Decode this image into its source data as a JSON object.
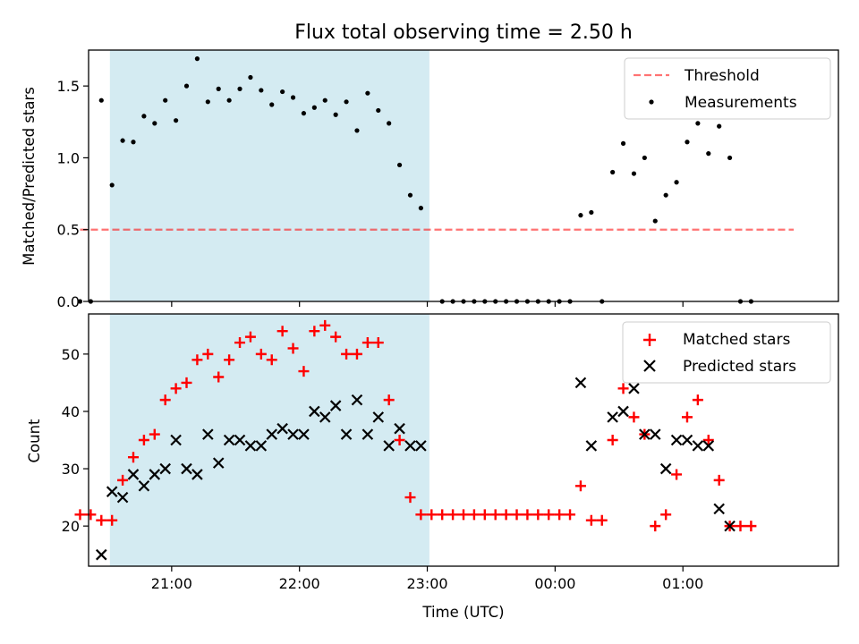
{
  "chart_data": [
    {
      "type": "scatter",
      "title": "Flux total observing time = 2.50 h",
      "xlabel": "",
      "ylabel": "Matched/Predicted stars",
      "ylim": [
        0,
        1.75
      ],
      "xlim": [
        "20:21",
        "02:13"
      ],
      "yticks": [
        "0.0",
        "0.5",
        "1.0",
        "1.5"
      ],
      "highlight_window": {
        "start": "20:31",
        "end": "23:01",
        "color": "#add8e6"
      },
      "threshold": {
        "name": "Threshold",
        "value": 0.5,
        "x_start": "20:17",
        "x_end": "01:52",
        "color": "#ff0000",
        "style": "dashed"
      },
      "series": [
        {
          "name": "Measurements",
          "color": "#000000",
          "marker": "dot",
          "points": [
            [
              "20:17",
              0.0
            ],
            [
              "20:22",
              0.0
            ],
            [
              "20:27",
              1.4
            ],
            [
              "20:32",
              0.81
            ],
            [
              "20:37",
              1.12
            ],
            [
              "20:42",
              1.11
            ],
            [
              "20:47",
              1.29
            ],
            [
              "20:52",
              1.24
            ],
            [
              "20:57",
              1.4
            ],
            [
              "21:02",
              1.26
            ],
            [
              "21:07",
              1.5
            ],
            [
              "21:12",
              1.69
            ],
            [
              "21:17",
              1.39
            ],
            [
              "21:22",
              1.48
            ],
            [
              "21:27",
              1.4
            ],
            [
              "21:32",
              1.48
            ],
            [
              "21:37",
              1.56
            ],
            [
              "21:42",
              1.47
            ],
            [
              "21:47",
              1.37
            ],
            [
              "21:52",
              1.46
            ],
            [
              "21:57",
              1.42
            ],
            [
              "22:02",
              1.31
            ],
            [
              "22:07",
              1.35
            ],
            [
              "22:12",
              1.4
            ],
            [
              "22:17",
              1.3
            ],
            [
              "22:22",
              1.39
            ],
            [
              "22:27",
              1.19
            ],
            [
              "22:32",
              1.45
            ],
            [
              "22:37",
              1.33
            ],
            [
              "22:42",
              1.24
            ],
            [
              "22:47",
              0.95
            ],
            [
              "22:52",
              0.74
            ],
            [
              "22:57",
              0.65
            ],
            [
              "23:07",
              0.0
            ],
            [
              "23:12",
              0.0
            ],
            [
              "23:17",
              0.0
            ],
            [
              "23:22",
              0.0
            ],
            [
              "23:27",
              0.0
            ],
            [
              "23:32",
              0.0
            ],
            [
              "23:37",
              0.0
            ],
            [
              "23:42",
              0.0
            ],
            [
              "23:47",
              0.0
            ],
            [
              "23:52",
              0.0
            ],
            [
              "23:57",
              0.0
            ],
            [
              "00:02",
              0.0
            ],
            [
              "00:07",
              0.0
            ],
            [
              "00:12",
              0.6
            ],
            [
              "00:17",
              0.62
            ],
            [
              "00:22",
              0.0
            ],
            [
              "00:27",
              0.9
            ],
            [
              "00:32",
              1.1
            ],
            [
              "00:37",
              0.89
            ],
            [
              "00:42",
              1.0
            ],
            [
              "00:47",
              0.56
            ],
            [
              "00:52",
              0.74
            ],
            [
              "00:57",
              0.83
            ],
            [
              "01:02",
              1.11
            ],
            [
              "01:07",
              1.24
            ],
            [
              "01:12",
              1.03
            ],
            [
              "01:17",
              1.22
            ],
            [
              "01:22",
              1.0
            ],
            [
              "01:27",
              0.0
            ],
            [
              "01:32",
              0.0
            ]
          ]
        }
      ],
      "legend": {
        "position": "upper right",
        "entries": [
          "Threshold",
          "Measurements"
        ]
      }
    },
    {
      "type": "scatter",
      "title": "",
      "xlabel": "Time (UTC)",
      "ylabel": "Count",
      "ylim": [
        13,
        57
      ],
      "xlim": [
        "20:21",
        "02:13"
      ],
      "xticks": [
        "21:00",
        "22:00",
        "23:00",
        "00:00",
        "01:00"
      ],
      "yticks": [
        "20",
        "30",
        "40",
        "50"
      ],
      "highlight_window": {
        "start": "20:31",
        "end": "23:01",
        "color": "#add8e6"
      },
      "series": [
        {
          "name": "Matched stars",
          "color": "#ff0000",
          "marker": "plus",
          "points": [
            [
              "20:17",
              22
            ],
            [
              "20:22",
              22
            ],
            [
              "20:27",
              21
            ],
            [
              "20:32",
              21
            ],
            [
              "20:37",
              28
            ],
            [
              "20:42",
              32
            ],
            [
              "20:47",
              35
            ],
            [
              "20:52",
              36
            ],
            [
              "20:57",
              42
            ],
            [
              "21:02",
              44
            ],
            [
              "21:07",
              45
            ],
            [
              "21:12",
              49
            ],
            [
              "21:17",
              50
            ],
            [
              "21:22",
              46
            ],
            [
              "21:27",
              49
            ],
            [
              "21:32",
              52
            ],
            [
              "21:37",
              53
            ],
            [
              "21:42",
              50
            ],
            [
              "21:47",
              49
            ],
            [
              "21:52",
              54
            ],
            [
              "21:57",
              51
            ],
            [
              "22:02",
              47
            ],
            [
              "22:07",
              54
            ],
            [
              "22:12",
              55
            ],
            [
              "22:17",
              53
            ],
            [
              "22:22",
              50
            ],
            [
              "22:27",
              50
            ],
            [
              "22:32",
              52
            ],
            [
              "22:37",
              52
            ],
            [
              "22:42",
              42
            ],
            [
              "22:47",
              35
            ],
            [
              "22:52",
              25
            ],
            [
              "22:57",
              22
            ],
            [
              "23:02",
              22
            ],
            [
              "23:07",
              22
            ],
            [
              "23:12",
              22
            ],
            [
              "23:17",
              22
            ],
            [
              "23:22",
              22
            ],
            [
              "23:27",
              22
            ],
            [
              "23:32",
              22
            ],
            [
              "23:37",
              22
            ],
            [
              "23:42",
              22
            ],
            [
              "23:47",
              22
            ],
            [
              "23:52",
              22
            ],
            [
              "23:57",
              22
            ],
            [
              "00:02",
              22
            ],
            [
              "00:07",
              22
            ],
            [
              "00:12",
              27
            ],
            [
              "00:17",
              21
            ],
            [
              "00:22",
              21
            ],
            [
              "00:27",
              35
            ],
            [
              "00:32",
              44
            ],
            [
              "00:37",
              39
            ],
            [
              "00:42",
              36
            ],
            [
              "00:47",
              20
            ],
            [
              "00:52",
              22
            ],
            [
              "00:57",
              29
            ],
            [
              "01:02",
              39
            ],
            [
              "01:07",
              42
            ],
            [
              "01:12",
              35
            ],
            [
              "01:17",
              28
            ],
            [
              "01:22",
              20
            ],
            [
              "01:27",
              20
            ],
            [
              "01:32",
              20
            ]
          ]
        },
        {
          "name": "Predicted stars",
          "color": "#000000",
          "marker": "x",
          "points": [
            [
              "20:27",
              15
            ],
            [
              "20:32",
              26
            ],
            [
              "20:37",
              25
            ],
            [
              "20:42",
              29
            ],
            [
              "20:47",
              27
            ],
            [
              "20:52",
              29
            ],
            [
              "20:57",
              30
            ],
            [
              "21:02",
              35
            ],
            [
              "21:07",
              30
            ],
            [
              "21:12",
              29
            ],
            [
              "21:17",
              36
            ],
            [
              "21:22",
              31
            ],
            [
              "21:27",
              35
            ],
            [
              "21:32",
              35
            ],
            [
              "21:37",
              34
            ],
            [
              "21:42",
              34
            ],
            [
              "21:47",
              36
            ],
            [
              "21:52",
              37
            ],
            [
              "21:57",
              36
            ],
            [
              "22:02",
              36
            ],
            [
              "22:07",
              40
            ],
            [
              "22:12",
              39
            ],
            [
              "22:17",
              41
            ],
            [
              "22:22",
              36
            ],
            [
              "22:27",
              42
            ],
            [
              "22:32",
              36
            ],
            [
              "22:37",
              39
            ],
            [
              "22:42",
              34
            ],
            [
              "22:47",
              37
            ],
            [
              "22:52",
              34
            ],
            [
              "22:57",
              34
            ],
            [
              "00:12",
              45
            ],
            [
              "00:17",
              34
            ],
            [
              "00:27",
              39
            ],
            [
              "00:32",
              40
            ],
            [
              "00:37",
              44
            ],
            [
              "00:42",
              36
            ],
            [
              "00:47",
              36
            ],
            [
              "00:52",
              30
            ],
            [
              "00:57",
              35
            ],
            [
              "01:02",
              35
            ],
            [
              "01:07",
              34
            ],
            [
              "01:12",
              34
            ],
            [
              "01:17",
              23
            ],
            [
              "01:22",
              20
            ]
          ]
        }
      ],
      "legend": {
        "position": "upper right",
        "entries": [
          "Matched stars",
          "Predicted stars"
        ]
      }
    }
  ]
}
